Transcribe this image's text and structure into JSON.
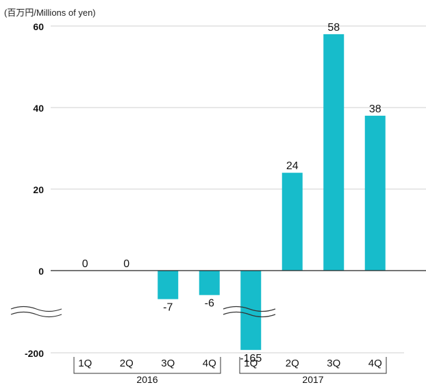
{
  "chart_data": {
    "type": "bar",
    "unit_label": "(百万円/Millions of yen)",
    "categories": [
      "1Q",
      "2Q",
      "3Q",
      "4Q",
      "1Q",
      "2Q",
      "3Q",
      "4Q"
    ],
    "groups": [
      {
        "label": "2016",
        "categories": [
          "1Q",
          "2Q",
          "3Q",
          "4Q"
        ]
      },
      {
        "label": "2017",
        "categories": [
          "1Q",
          "2Q",
          "3Q",
          "4Q"
        ]
      }
    ],
    "values": [
      0,
      0,
      -7,
      -6,
      -165,
      24,
      58,
      38
    ],
    "data_labels": [
      "0",
      "0",
      "-7",
      "-6",
      "-165",
      "24",
      "58",
      "38"
    ],
    "y_ticks": [
      60,
      40,
      20,
      0,
      -200
    ],
    "y_tick_labels": [
      "60",
      "40",
      "20",
      "0",
      "-200"
    ],
    "ylim": [
      -200,
      60
    ],
    "axis_break": true,
    "grid": true,
    "bar_color": "#17bccb"
  }
}
